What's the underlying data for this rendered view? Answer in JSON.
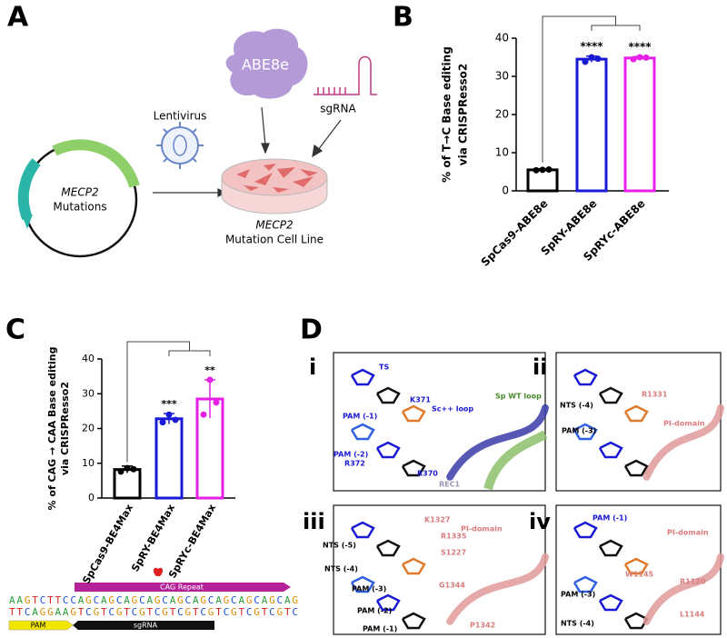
{
  "panels": {
    "labels": [
      "A",
      "B",
      "C",
      "D"
    ]
  },
  "diagram_a": {
    "protein": "ABE8e",
    "guide": "sgRNA",
    "vector": "Lentivirus",
    "plasmid": [
      "MECP2",
      "Mutations"
    ],
    "cell_line": [
      "MECP2",
      "Mutation Cell Line"
    ]
  },
  "sequence": {
    "top": "AAGTCTTCCAGCAGCAGCAGCAGCAGCAGCAGCAGCAG",
    "bottom": "TTCAGGAAGTCGTCGTCGTCGTCGTCGTCGTCGTCGTC",
    "repeat": "CAG Repeat",
    "pam": "PAM",
    "guide": "sgRNA"
  },
  "structures": [
    {
      "numeral": "i",
      "labels": [
        "TS",
        "K371",
        "Sc++ loop",
        "Sp WT loop",
        "PAM (-1)",
        "PAM (-2)",
        "R372",
        "R370",
        "REC1"
      ]
    },
    {
      "numeral": "ii",
      "labels": [
        "NTS (-4)",
        "PAM (-3)",
        "R1331",
        "PI-domain"
      ]
    },
    {
      "numeral": "iii",
      "labels": [
        "K1327",
        "PI-domain",
        "R1335",
        "S1227",
        "NTS (-5)",
        "NTS (-4)",
        "PAM (-3)",
        "PAM (-2)",
        "PAM (-1)",
        "G1344",
        "P1342"
      ]
    },
    {
      "numeral": "iv",
      "labels": [
        "PAM (-1)",
        "PI-domain",
        "R1120",
        "W1145",
        "L1144",
        "PAM (-3)",
        "NTS (-4)"
      ]
    }
  ],
  "chart_data": [
    {
      "type": "bar",
      "ylabel": [
        "% of T→C Base editing",
        "via CRISPResso2"
      ],
      "categories": [
        "SpCas9-ABE8e",
        "SpRY-ABE8e",
        "SpRYc-ABE8e"
      ],
      "colors": [
        "#000000",
        "#1a1ad6",
        "#e620e6"
      ],
      "values": [
        5.5,
        34.5,
        34.8
      ],
      "errors": [
        0.3,
        0.8,
        0.4
      ],
      "points": [
        [
          5.4,
          5.5,
          5.6
        ],
        [
          33.8,
          35.0,
          34.6
        ],
        [
          34.5,
          35.0,
          34.9
        ]
      ],
      "significance": [
        null,
        "****",
        "****"
      ],
      "ylim": [
        0,
        40
      ],
      "yticks": [
        0,
        10,
        20,
        30,
        40
      ]
    },
    {
      "type": "bar",
      "ylabel": [
        "% of CAG → CAA Base editing",
        "via CRISPResso2"
      ],
      "categories": [
        "SpCas9-BE4Max",
        "SpRY-BE4Max",
        "SpRYc-BE4Max"
      ],
      "colors": [
        "#000000",
        "#1a1ad6",
        "#e620e6"
      ],
      "values": [
        8.2,
        22.8,
        28.5
      ],
      "errors": [
        1.0,
        1.5,
        5.5
      ],
      "points": [
        [
          7.6,
          8.6,
          8.3
        ],
        [
          21.8,
          24.0,
          22.5
        ],
        [
          24.0,
          34.0,
          27.5
        ]
      ],
      "significance": [
        null,
        "***",
        "**"
      ],
      "ylim": [
        0,
        40
      ],
      "yticks": [
        0,
        10,
        20,
        30,
        40
      ]
    }
  ]
}
